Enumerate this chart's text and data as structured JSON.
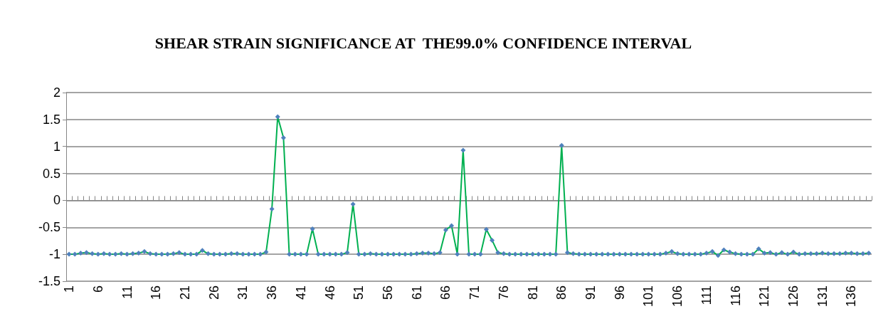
{
  "chart_data": {
    "type": "line",
    "title": "SHEAR STRAIN SIGNIFICANCE AT  THE99.0% CONFIDENCE INTERVAL",
    "categories": [
      "1",
      null,
      null,
      null,
      null,
      "6",
      null,
      null,
      null,
      null,
      "11",
      null,
      null,
      null,
      null,
      "16",
      null,
      null,
      null,
      null,
      "21",
      null,
      null,
      null,
      null,
      "26",
      null,
      null,
      null,
      null,
      "31",
      null,
      null,
      null,
      null,
      "36",
      null,
      null,
      null,
      null,
      "41",
      null,
      null,
      null,
      null,
      "46",
      null,
      null,
      null,
      null,
      "51",
      null,
      null,
      null,
      null,
      "56",
      null,
      null,
      null,
      null,
      "61",
      null,
      null,
      null,
      null,
      "66",
      null,
      null,
      null,
      null,
      "71",
      null,
      null,
      null,
      null,
      "76",
      null,
      null,
      null,
      null,
      "81",
      null,
      null,
      null,
      null,
      "86",
      null,
      null,
      null,
      null,
      "91",
      null,
      null,
      null,
      null,
      "96",
      null,
      null,
      null,
      null,
      "101",
      null,
      null,
      null,
      null,
      "106",
      null,
      null,
      null,
      null,
      "111",
      null,
      null,
      null,
      null,
      "116",
      null,
      null,
      null,
      null,
      "121",
      null,
      null,
      null,
      null,
      "126",
      null,
      null,
      null,
      null,
      "131",
      null,
      null,
      null,
      null,
      "136",
      null,
      null,
      null
    ],
    "series": [
      {
        "color": "#00b050",
        "colors": [
          "#4f81bd",
          "#4f81bd",
          "#4f81bd",
          "#4f81bd",
          "#4f81bd",
          "#4f81bd",
          "#4f81bd",
          "#4f81bd",
          "#4f81bd",
          "#4f81bd",
          "#4f81bd",
          "#4f81bd",
          "#4f81bd",
          "#4f81bd",
          "#4f81bd",
          "#4f81bd",
          "#4f81bd",
          "#4f81bd",
          "#4f81bd",
          "#4f81bd",
          "#4f81bd",
          "#4f81bd",
          "#4f81bd",
          "#4f81bd",
          "#4f81bd",
          "#4f81bd",
          "#4f81bd",
          "#4f81bd",
          "#4f81bd",
          "#4f81bd",
          "#4f81bd",
          "#4f81bd",
          "#4f81bd",
          "#4f81bd",
          "#4f81bd",
          "#4f81bd",
          "#4f81bd",
          "#4f81bd",
          "#4f81bd",
          "#4f81bd",
          "#4f81bd",
          "#4f81bd",
          "#4f81bd",
          "#4f81bd",
          "#4f81bd",
          "#4f81bd",
          "#4f81bd",
          "#4f81bd",
          "#4f81bd",
          "#4f81bd",
          "#4f81bd",
          "#4f81bd",
          "#4f81bd",
          "#4f81bd",
          "#4f81bd",
          "#4f81bd",
          "#4f81bd",
          "#4f81bd",
          "#4f81bd",
          "#4f81bd",
          "#4f81bd",
          "#4f81bd",
          "#4f81bd",
          "#4f81bd",
          "#4f81bd",
          "#4f81bd",
          "#4f81bd",
          "#4f81bd",
          "#4f81bd",
          "#4f81bd",
          "#4f81bd",
          "#4f81bd",
          "#4f81bd",
          "#4f81bd",
          "#4f81bd",
          "#4f81bd",
          "#4f81bd",
          "#4f81bd",
          "#4f81bd",
          "#4f81bd",
          "#4f81bd",
          "#4f81bd",
          "#4f81bd",
          "#4f81bd",
          "#4f81bd",
          "#4f81bd",
          "#4f81bd",
          "#4f81bd",
          "#4f81bd",
          "#4f81bd",
          "#4f81bd",
          "#4f81bd",
          "#4f81bd",
          "#4f81bd",
          "#4f81bd",
          "#4f81bd",
          "#4f81bd",
          "#4f81bd",
          "#4f81bd",
          "#4f81bd",
          "#4f81bd",
          "#4f81bd",
          "#4f81bd",
          "#4f81bd",
          "#4f81bd",
          "#4f81bd",
          "#4f81bd",
          "#4f81bd",
          "#4f81bd",
          "#4f81bd",
          "#4f81bd",
          "#4f81bd",
          "#4f81bd",
          "#4f81bd",
          "#4f81bd",
          "#4f81bd",
          "#4f81bd",
          "#4f81bd",
          "#4f81bd",
          "#4f81bd",
          "#4f81bd",
          "#4f81bd",
          "#4f81bd",
          "#4f81bd",
          "#4f81bd",
          "#4f81bd",
          "#4f81bd",
          "#4f81bd",
          "#4f81bd",
          "#4f81bd",
          "#4f81bd",
          "#4f81bd",
          "#4f81bd",
          "#4f81bd",
          "#4f81bd",
          "#4f81bd",
          "#4f81bd",
          "#4f81bd",
          "#4f81bd"
        ],
        "values": [
          -1,
          -1,
          -0.98,
          -0.97,
          -0.99,
          -1,
          -0.99,
          -1,
          -1,
          -0.99,
          -1,
          -0.99,
          -0.98,
          -0.95,
          -0.99,
          -1,
          -1,
          -1,
          -0.99,
          -0.97,
          -1,
          -1,
          -1,
          -0.93,
          -0.99,
          -1,
          -1,
          -1,
          -0.99,
          -0.99,
          -1,
          -1,
          -1,
          -1,
          -0.96,
          -0.16,
          1.55,
          1.16,
          -1,
          -1,
          -1,
          -1,
          -0.53,
          -1,
          -1,
          -1,
          -1,
          -1,
          -0.97,
          -0.07,
          -1,
          -1,
          -0.99,
          -1,
          -1,
          -1,
          -1,
          -1,
          -1,
          -1,
          -0.99,
          -0.98,
          -0.98,
          -0.99,
          -0.97,
          -0.55,
          -0.47,
          -1,
          0.93,
          -1,
          -1,
          -1,
          -0.54,
          -0.74,
          -0.97,
          -0.99,
          -1,
          -1,
          -1,
          -1,
          -1,
          -1,
          -1,
          -1,
          -1,
          1.02,
          -0.97,
          -0.99,
          -1,
          -1,
          -1,
          -1,
          -1,
          -1,
          -1,
          -1,
          -1,
          -1,
          -1,
          -1,
          -1,
          -1,
          -1,
          -0.98,
          -0.95,
          -0.99,
          -1,
          -1,
          -1,
          -1,
          -0.98,
          -0.95,
          -1.02,
          -0.92,
          -0.96,
          -0.99,
          -1,
          -1,
          -1,
          -0.9,
          -0.98,
          -0.97,
          -1,
          -0.97,
          -1,
          -0.96,
          -1,
          -0.99,
          -0.99,
          -0.99,
          -0.98,
          -0.99,
          -0.99,
          -0.99,
          -0.98,
          -0.98,
          -0.99,
          -0.99,
          -0.98
        ]
      }
    ],
    "ylim": [
      -1.5,
      2
    ],
    "yticks": [
      -1.5,
      -1,
      -0.5,
      0,
      0.5,
      1,
      1.5,
      2
    ],
    "grid": "y",
    "marker": "diamond",
    "line_style": "solid"
  }
}
